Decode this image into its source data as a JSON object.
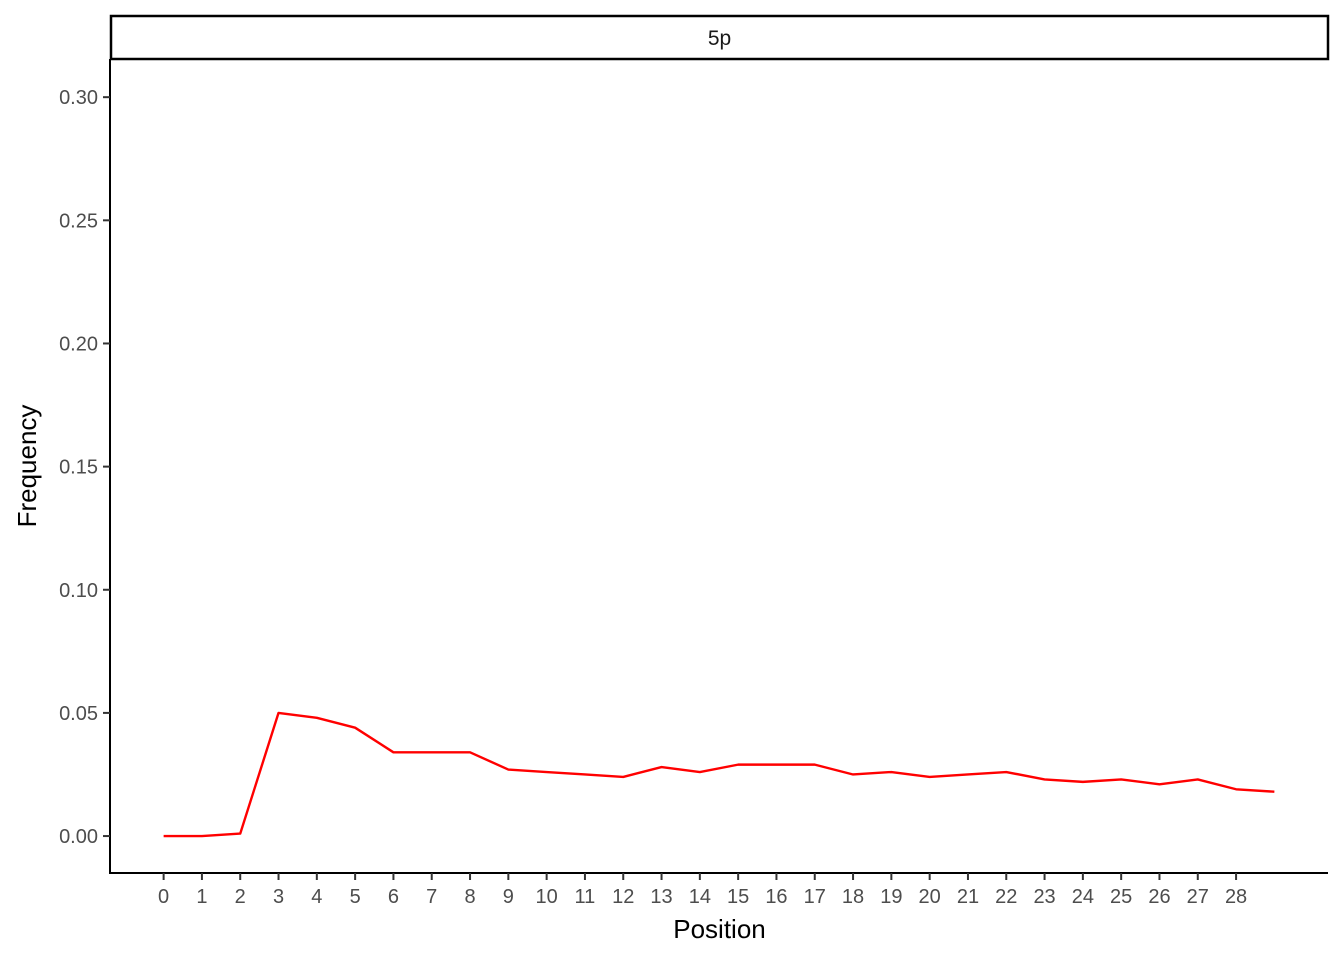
{
  "chart_data": {
    "type": "line",
    "facet_label": "5p",
    "xlabel": "Position",
    "ylabel": "Frequency",
    "x_ticks": [
      0,
      1,
      2,
      3,
      4,
      5,
      6,
      7,
      8,
      9,
      10,
      11,
      12,
      13,
      14,
      15,
      16,
      17,
      18,
      19,
      20,
      21,
      22,
      23,
      24,
      25,
      26,
      27,
      28
    ],
    "y_ticks": [
      "0.00",
      "0.05",
      "0.10",
      "0.15",
      "0.20",
      "0.25",
      "0.30"
    ],
    "ylim": [
      -0.015,
      0.3155
    ],
    "xlim": [
      -1.4,
      30.4
    ],
    "grid": false,
    "series": [
      {
        "color": "#ff0000",
        "x": [
          0,
          1,
          2,
          3,
          4,
          5,
          6,
          7,
          8,
          9,
          10,
          11,
          12,
          13,
          14,
          15,
          16,
          17,
          18,
          19,
          20,
          21,
          22,
          23,
          24,
          25,
          26,
          27,
          28,
          29
        ],
        "values": [
          0.0,
          0.0,
          0.001,
          0.05,
          0.048,
          0.044,
          0.034,
          0.034,
          0.034,
          0.027,
          0.026,
          0.025,
          0.024,
          0.028,
          0.026,
          0.029,
          0.029,
          0.029,
          0.025,
          0.026,
          0.024,
          0.025,
          0.026,
          0.023,
          0.022,
          0.023,
          0.021,
          0.023,
          0.019,
          0.018
        ]
      }
    ]
  }
}
